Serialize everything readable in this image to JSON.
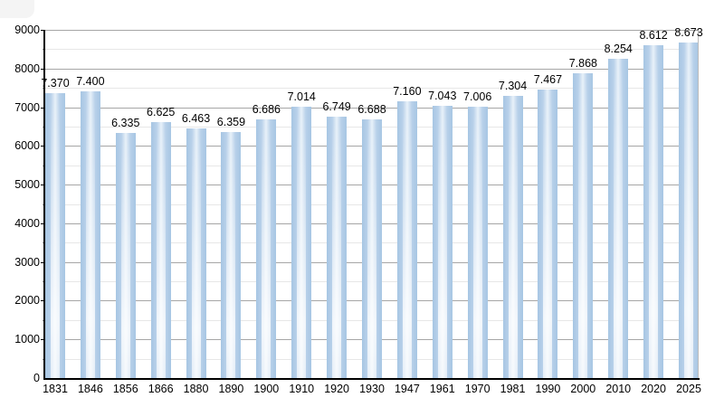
{
  "chart_data": {
    "type": "bar",
    "title": "",
    "xlabel": "",
    "ylabel": "",
    "categories": [
      "1831",
      "1846",
      "1856",
      "1866",
      "1880",
      "1890",
      "1900",
      "1910",
      "1920",
      "1930",
      "1947",
      "1961",
      "1970",
      "1981",
      "1990",
      "2000",
      "2010",
      "2020",
      "2025"
    ],
    "values": [
      7370,
      7400,
      6335,
      6625,
      6463,
      6359,
      6686,
      7014,
      6749,
      6688,
      7160,
      7043,
      7006,
      7304,
      7467,
      7868,
      8254,
      8612,
      8673
    ],
    "value_labels": [
      "7.370",
      "7.400",
      "6.335",
      "6.625",
      "6.463",
      "6.359",
      "6.686",
      "7.014",
      "6.749",
      "6.688",
      "7.160",
      "7.043",
      "7.006",
      "7.304",
      "7.467",
      "7.868",
      "8.254",
      "8.612",
      "8.673"
    ],
    "ylim": [
      0,
      9000
    ],
    "y_major_ticks": [
      0,
      1000,
      2000,
      3000,
      4000,
      5000,
      6000,
      7000,
      8000,
      9000
    ],
    "y_major_tick_labels": [
      "0",
      "1000",
      "2000",
      "3000",
      "4000",
      "5000",
      "6000",
      "7000",
      "8000",
      "9000"
    ],
    "y_minor_step": 500,
    "grid": "horizontal major+minor",
    "legend": "none",
    "colors": {
      "bar_edge": "#a7c6e3",
      "bar_highlight": "#e8f1f9",
      "grid_major": "#a6a6a6",
      "grid_minor": "#e7e7e7",
      "axis": "#000000",
      "frame_right": "#bcbcbc",
      "text": "#000000",
      "background": "#ffffff"
    }
  }
}
